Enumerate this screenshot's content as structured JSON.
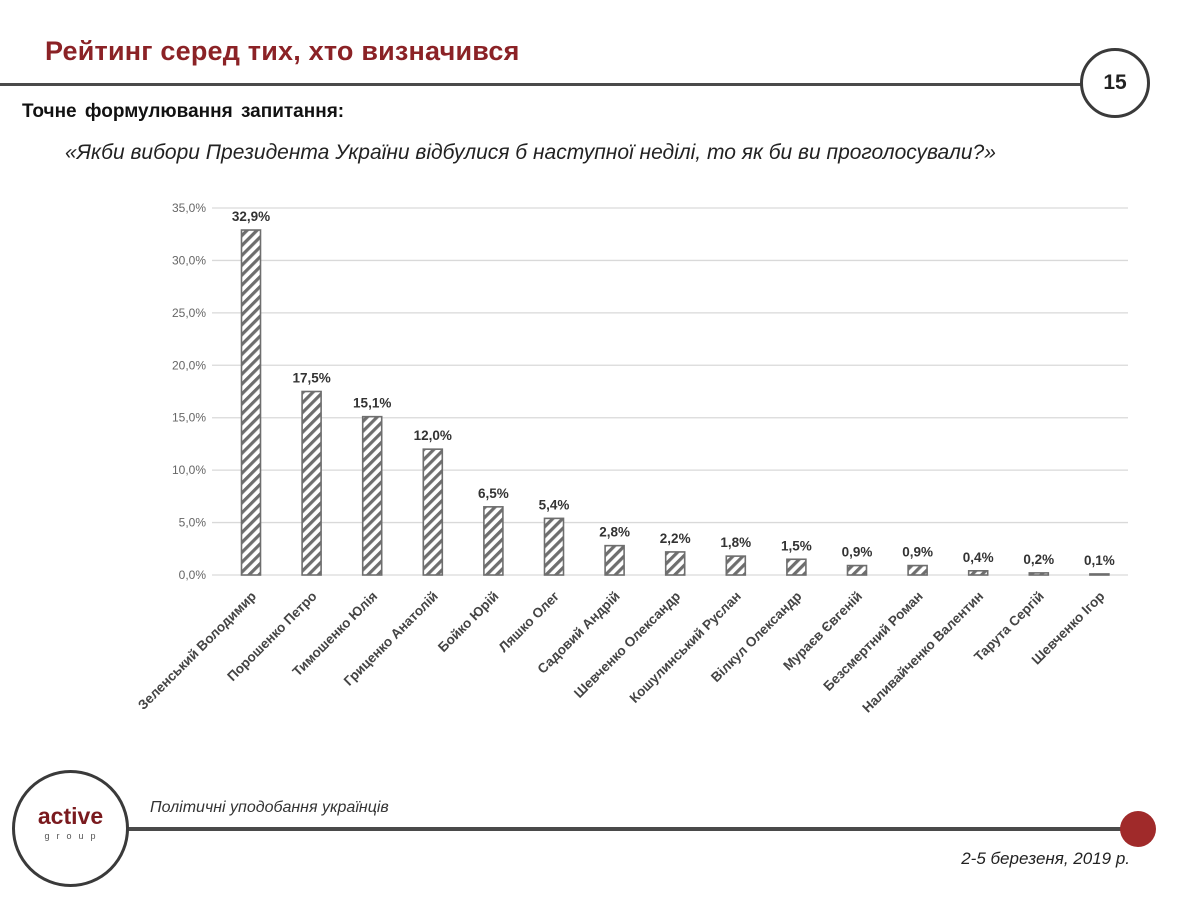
{
  "header": {
    "title": "Рейтинг серед тих, хто визначився",
    "page_number": "15",
    "subtitle": "Точне формулювання  запитання:",
    "question": "«Якби вибори Президента України відбулися б наступної неділі, то як би ви проголосували?»"
  },
  "footer": {
    "logo_main": "active",
    "logo_sub": "group",
    "caption": "Політичні уподобання українців",
    "date": "2-5 березеня, 2019 р."
  },
  "colors": {
    "title": "#8b2226",
    "bar_stroke": "#6e6e6e",
    "grid": "#d9d9d9",
    "accent_dot": "#a02a2a"
  },
  "chart_data": {
    "type": "bar",
    "title": "",
    "xlabel": "",
    "ylabel": "",
    "ylim": [
      0,
      35
    ],
    "yticks": [
      "0,0%",
      "5,0%",
      "10,0%",
      "15,0%",
      "20,0%",
      "25,0%",
      "30,0%",
      "35,0%"
    ],
    "grid": true,
    "legend": "none",
    "bar_pattern": "diagonal-hatch",
    "categories": [
      "Зеленський Володимир",
      "Порошенко Петро",
      "Тимошенко Юлія",
      "Гриценко Анатолій",
      "Бойко Юрій",
      "Ляшко Олег",
      "Садовий Андрій",
      "Шевченко Олександр",
      "Кошулинський Руслан",
      "Вілкул Олександр",
      "Мураєв Євгеній",
      "Безсмертний Роман",
      "Наливайченко Валентин",
      "Тарута Сергій",
      "Шевченко Ігор"
    ],
    "values": [
      32.9,
      17.5,
      15.1,
      12.0,
      6.5,
      5.4,
      2.8,
      2.2,
      1.8,
      1.5,
      0.9,
      0.9,
      0.4,
      0.2,
      0.1
    ],
    "labels": [
      "32,9%",
      "17,5%",
      "15,1%",
      "12,0%",
      "6,5%",
      "5,4%",
      "2,8%",
      "2,2%",
      "1,8%",
      "1,5%",
      "0,9%",
      "0,9%",
      "0,4%",
      "0,2%",
      "0,1%"
    ]
  }
}
